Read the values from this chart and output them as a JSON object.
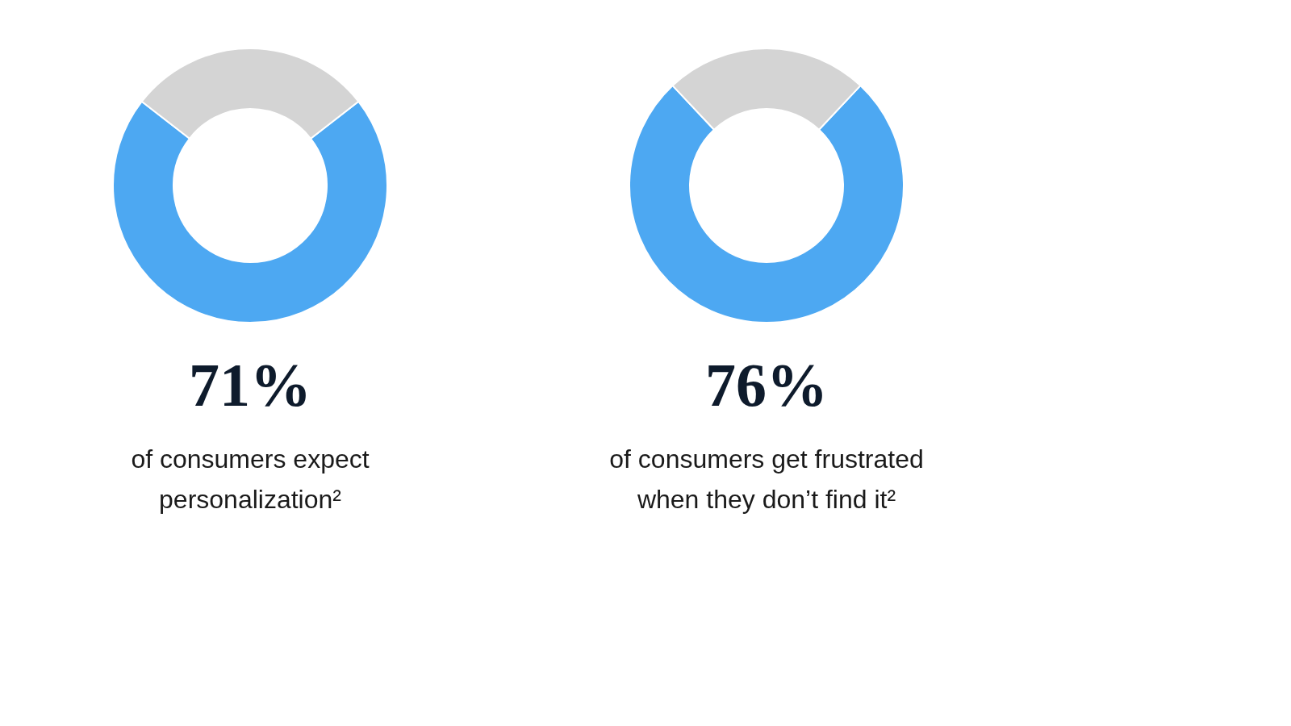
{
  "chart_data": [
    {
      "type": "donut",
      "categories": [
        null,
        null
      ],
      "values": [
        71,
        29
      ],
      "colors": [
        "#4da8f2",
        "#d4d4d4"
      ],
      "value_labels": [
        "71%",
        null
      ],
      "annotations": [
        "of consumers expect personalization²"
      ]
    },
    {
      "type": "donut",
      "categories": [
        null,
        null
      ],
      "values": [
        76,
        24
      ],
      "colors": [
        "#4da8f2",
        "#d4d4d4"
      ],
      "value_labels": [
        "76%",
        null
      ],
      "annotations": [
        "of consumers get frustrated when they don’t find it²"
      ]
    }
  ]
}
